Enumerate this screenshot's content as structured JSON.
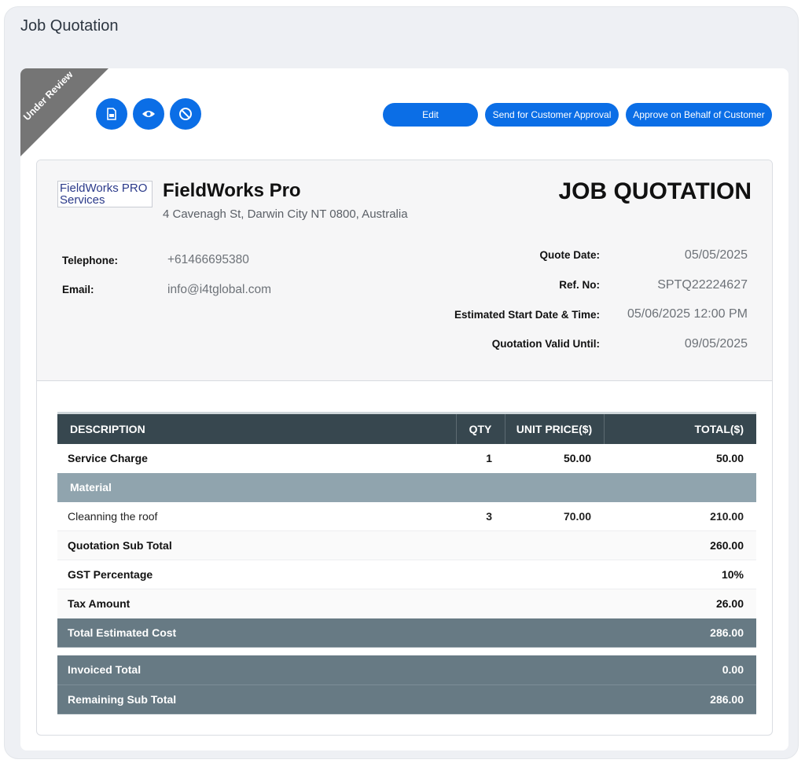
{
  "page": {
    "title": "Job Quotation"
  },
  "status": {
    "ribbon_label": "Under Review",
    "ribbon_color": "#757575"
  },
  "toolbar": {
    "icons": [
      "pdf-icon",
      "eye-icon",
      "cancel-icon"
    ],
    "edit_label": "Edit",
    "send_label": "Send for Customer Approval",
    "approve_label": "Approve on Behalf of Customer"
  },
  "company": {
    "logo_text": "FieldWorks PRO Services",
    "name": "FieldWorks Pro",
    "address": "4 Cavenagh St, Darwin City NT 0800, Australia"
  },
  "document": {
    "title": "JOB QUOTATION"
  },
  "contact": {
    "telephone_label": "Telephone:",
    "telephone": "+61466695380",
    "email_label": "Email:",
    "email": "info@i4tglobal.com"
  },
  "quote_info": {
    "quote_date_label": "Quote Date:",
    "quote_date": "05/05/2025",
    "ref_label": "Ref. No:",
    "ref": "SPTQ22224627",
    "start_label": "Estimated Start Date & Time:",
    "start": "05/06/2025 12:00 PM",
    "valid_label": "Quotation Valid Until:",
    "valid": "09/05/2025"
  },
  "table": {
    "headers": {
      "description": "DESCRIPTION",
      "qty": "QTY",
      "unit_price": "UNIT PRICE($)",
      "total": "TOTAL($)"
    },
    "service": {
      "description": "Service Charge",
      "qty": "1",
      "unit_price": "50.00",
      "total": "50.00"
    },
    "material_header": "Material",
    "material_item": {
      "description": "Cleanning the roof",
      "qty": "3",
      "unit_price": "70.00",
      "total": "210.00"
    },
    "sub_total": {
      "label": "Quotation Sub Total",
      "value": "260.00"
    },
    "gst": {
      "label": "GST Percentage",
      "value": "10%"
    },
    "tax": {
      "label": "Tax Amount",
      "value": "26.00"
    },
    "total_estimated": {
      "label": "Total Estimated Cost",
      "value": "286.00"
    }
  },
  "invoice": {
    "invoiced_total": {
      "label": "Invoiced Total",
      "value": "0.00"
    },
    "remaining": {
      "label": "Remaining Sub Total",
      "value": "286.00"
    }
  },
  "colors": {
    "primary": "#0b6ee6",
    "table_header": "#37474f",
    "material_row": "#90a4ae",
    "totals_row": "#677a84"
  }
}
